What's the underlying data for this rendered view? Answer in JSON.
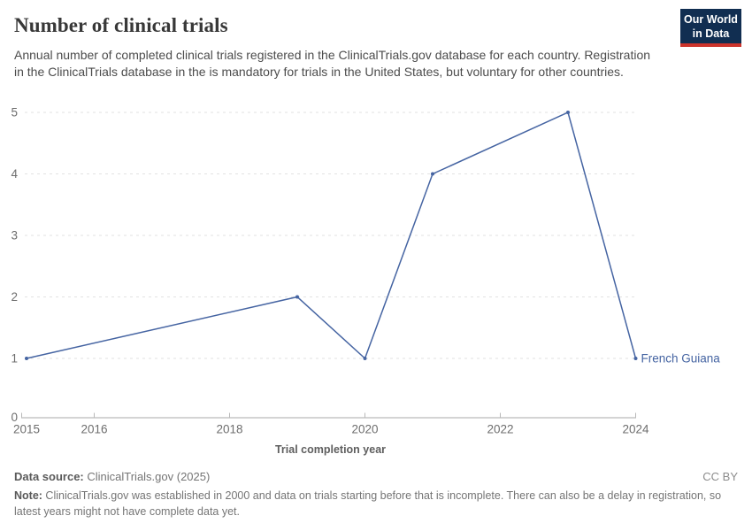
{
  "header": {
    "title": "Number of clinical trials",
    "subtitle": "Annual number of completed clinical trials registered in the ClinicalTrials.gov database for each country. Registration in the ClinicalTrials database in the is mandatory for trials in the United States, but voluntary for other countries.",
    "logo": {
      "line1": "Our World",
      "line2": "in Data"
    }
  },
  "chart_data": {
    "type": "line",
    "title": "Number of clinical trials",
    "xlabel": "Trial completion year",
    "ylabel": "",
    "xlim": [
      2015,
      2024
    ],
    "ylim": [
      0,
      5
    ],
    "x_ticks": [
      2015,
      2016,
      2018,
      2020,
      2022,
      2024
    ],
    "y_ticks": [
      0,
      1,
      2,
      3,
      4,
      5
    ],
    "grid": "horizontal-dashed",
    "legend_position": "label-at-line-end",
    "series": [
      {
        "name": "French Guiana",
        "color": "#4564a2",
        "points": [
          [
            2015,
            1
          ],
          [
            2019,
            2
          ],
          [
            2020,
            1
          ],
          [
            2021,
            4
          ],
          [
            2023,
            5
          ],
          [
            2024,
            1
          ]
        ]
      }
    ]
  },
  "footer": {
    "datasource_label": "Data source:",
    "datasource_value": " ClinicalTrials.gov (2025)",
    "license": "CC BY",
    "note_label": "Note:",
    "note_value": " ClinicalTrials.gov was established in 2000 and data on trials starting before that is incomplete. There can also be a delay in registration, so latest years might not have complete data yet."
  },
  "colors": {
    "accent_line": "#4564a2",
    "logo_bg": "#112e51",
    "logo_stripe": "#cc342c",
    "gridline": "#e2e2e2",
    "axis_line": "#a8a8a8",
    "tick_mark": "#b8b8b8",
    "tick_label": "#6e6e6e",
    "axis_title": "#5e5e5e"
  }
}
